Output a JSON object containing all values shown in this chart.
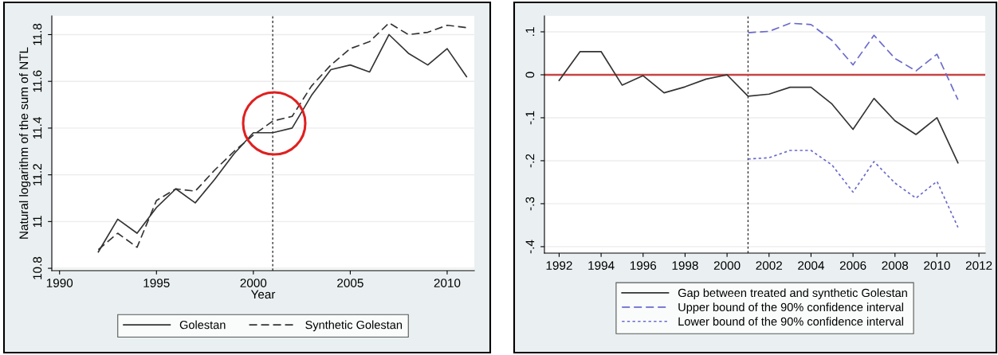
{
  "chart_data": [
    {
      "type": "line",
      "xlabel": "Year",
      "ylabel": "Natural logarithm of the sum of NTL",
      "x": [
        1992,
        1993,
        1994,
        1995,
        1996,
        1997,
        1998,
        1999,
        2000,
        2001,
        2002,
        2003,
        2004,
        2005,
        2006,
        2007,
        2008,
        2009,
        2010,
        2011
      ],
      "series": [
        {
          "name": "Golestan",
          "color": "#333333",
          "line_style": "solid",
          "values": [
            10.87,
            11.01,
            10.95,
            11.06,
            11.14,
            11.08,
            11.18,
            11.29,
            11.38,
            11.38,
            11.4,
            11.54,
            11.65,
            11.67,
            11.64,
            11.8,
            11.72,
            11.67,
            11.74,
            11.62
          ]
        },
        {
          "name": "Synthetic Golestan",
          "color": "#333333",
          "line_style": "dashed",
          "values": [
            10.88,
            10.95,
            10.89,
            11.09,
            11.14,
            11.13,
            11.22,
            11.3,
            11.37,
            11.43,
            11.45,
            11.58,
            11.67,
            11.74,
            11.77,
            11.85,
            11.8,
            11.81,
            11.84,
            11.83
          ]
        }
      ],
      "xlim": [
        1989.6,
        2011.4
      ],
      "ylim": [
        10.79,
        11.88
      ],
      "xticks": [
        1990,
        1995,
        2000,
        2005,
        2010
      ],
      "yticks": [
        10.8,
        11,
        11.2,
        11.4,
        11.6,
        11.8
      ],
      "ref_lines": [
        {
          "axis": "x",
          "value": 2001,
          "color": "#333333",
          "line_style": "dotted"
        }
      ],
      "grid": "y",
      "legend": "bottom"
    },
    {
      "type": "line",
      "x": [
        1992,
        1993,
        1994,
        1995,
        1996,
        1997,
        1998,
        1999,
        2000,
        2001,
        2002,
        2003,
        2004,
        2005,
        2006,
        2007,
        2008,
        2009,
        2010,
        2011
      ],
      "series": [
        {
          "name": "Gap between treated and synthetic Golestan",
          "color": "#333333",
          "line_style": "solid",
          "values": [
            -0.013,
            0.054,
            0.054,
            -0.024,
            -0.002,
            -0.042,
            -0.028,
            -0.01,
            0.0,
            -0.05,
            -0.045,
            -0.029,
            -0.029,
            -0.068,
            -0.127,
            -0.055,
            -0.107,
            -0.139,
            -0.1,
            -0.205
          ]
        },
        {
          "name": "Upper bound of the 90% confidence interval",
          "color": "#6a6acc",
          "line_style": "dashed",
          "values": [
            null,
            null,
            null,
            null,
            null,
            null,
            null,
            null,
            null,
            0.098,
            0.101,
            0.12,
            0.117,
            0.08,
            0.023,
            0.092,
            0.038,
            0.009,
            0.048,
            -0.058
          ]
        },
        {
          "name": "Lower bound of the 90% confidence interval",
          "color": "#6a6acc",
          "line_style": "dotted",
          "values": [
            null,
            null,
            null,
            null,
            null,
            null,
            null,
            null,
            null,
            -0.196,
            -0.193,
            -0.176,
            -0.176,
            -0.21,
            -0.273,
            -0.202,
            -0.252,
            -0.287,
            -0.248,
            -0.355
          ]
        }
      ],
      "xlim": [
        1991.3,
        2012.3
      ],
      "ylim": [
        -0.415,
        0.137
      ],
      "xticks": [
        1992,
        1994,
        1996,
        1998,
        2000,
        2002,
        2004,
        2006,
        2008,
        2010,
        2012
      ],
      "yticks": [
        {
          "value": 0.1,
          "label": ".1"
        },
        0,
        {
          "value": -0.1,
          "label": "-.1"
        },
        {
          "value": -0.2,
          "label": "-.2"
        },
        {
          "value": -0.3,
          "label": "-.3"
        },
        {
          "value": -0.4,
          "label": "-.4"
        }
      ],
      "ref_lines": [
        {
          "axis": "x",
          "value": 2001,
          "color": "#333333",
          "line_style": "dotted"
        },
        {
          "axis": "y",
          "value": 0,
          "color": "#c84444",
          "line_style": "solid"
        }
      ],
      "grid": "y",
      "legend": "bottom"
    }
  ]
}
